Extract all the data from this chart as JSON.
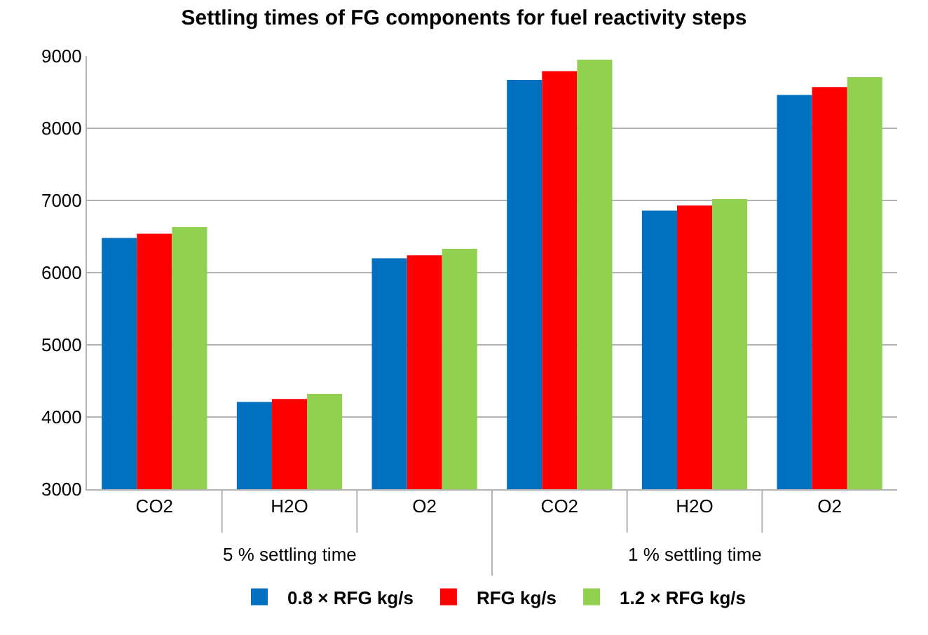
{
  "chart_data": {
    "type": "bar",
    "title": "Settling times of FG components for fuel reactivity steps",
    "categories": [
      "CO2",
      "H2O",
      "O2",
      "CO2",
      "H2O",
      "O2"
    ],
    "series": [
      {
        "name": "0.8 × RFG kg/s",
        "color": "#0070c0",
        "values": [
          6480,
          4210,
          6200,
          8670,
          6860,
          8460
        ]
      },
      {
        "name": "RFG kg/s",
        "color": "#ff0000",
        "values": [
          6540,
          4250,
          6240,
          8790,
          6930,
          8570
        ]
      },
      {
        "name": "1.2 × RFG kg/s",
        "color": "#92d050",
        "values": [
          6630,
          4320,
          6330,
          8950,
          7020,
          8710
        ]
      }
    ],
    "annotations": [
      "5 % settling time",
      "1 % settling time"
    ],
    "ylim": [
      3000,
      9000
    ],
    "yticks": [
      3000,
      4000,
      5000,
      6000,
      7000,
      8000,
      9000
    ],
    "grid": "y",
    "legend": "bottom"
  }
}
